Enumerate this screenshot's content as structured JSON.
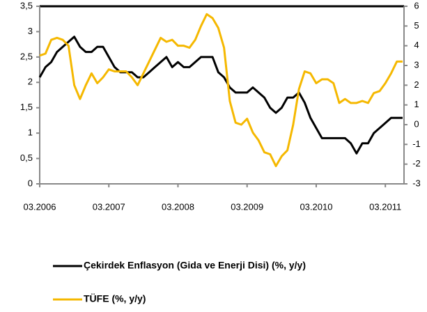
{
  "chart_data": {
    "type": "line",
    "categories": [
      "03.2006",
      null,
      null,
      null,
      null,
      null,
      null,
      null,
      null,
      null,
      null,
      null,
      "03.2007",
      null,
      null,
      null,
      null,
      null,
      null,
      null,
      null,
      null,
      null,
      null,
      "03.2008",
      null,
      null,
      null,
      null,
      null,
      null,
      null,
      null,
      null,
      null,
      null,
      "03.2009",
      null,
      null,
      null,
      null,
      null,
      null,
      null,
      null,
      null,
      null,
      null,
      "03.2010",
      null,
      null,
      null,
      null,
      null,
      null,
      null,
      null,
      null,
      null,
      null,
      "03.2011",
      null,
      null,
      null
    ],
    "series": [
      {
        "name": "Çekirdek Enflasyon (Gida ve Enerji Disi) (%, y/y)",
        "color": "#000000",
        "axis": "y",
        "values": [
          2.1,
          2.3,
          2.4,
          2.6,
          2.7,
          2.8,
          2.9,
          2.7,
          2.6,
          2.6,
          2.7,
          2.7,
          2.5,
          2.3,
          2.2,
          2.2,
          2.2,
          2.1,
          2.1,
          2.2,
          2.3,
          2.4,
          2.5,
          2.3,
          2.4,
          2.3,
          2.3,
          2.4,
          2.5,
          2.5,
          2.5,
          2.2,
          2.1,
          1.9,
          1.8,
          1.8,
          1.8,
          1.9,
          1.8,
          1.7,
          1.5,
          1.4,
          1.5,
          1.7,
          1.7,
          1.8,
          1.6,
          1.3,
          1.1,
          0.9,
          0.9,
          0.9,
          0.9,
          0.9,
          0.8,
          0.6,
          0.8,
          0.8,
          1.0,
          1.1,
          1.2,
          1.3,
          1.3,
          1.3
        ]
      },
      {
        "name": "TÜFE (%, y/y)",
        "color": "#f5b800",
        "axis": "y2",
        "values": [
          3.5,
          3.6,
          4.3,
          4.4,
          4.3,
          4.0,
          2.0,
          1.3,
          2.0,
          2.6,
          2.1,
          2.4,
          2.8,
          2.7,
          2.7,
          2.7,
          2.4,
          2.0,
          2.6,
          3.2,
          3.8,
          4.4,
          4.2,
          4.3,
          4.0,
          4.0,
          3.9,
          4.3,
          5.0,
          5.6,
          5.4,
          4.9,
          3.9,
          1.2,
          0.1,
          0.0,
          0.3,
          -0.4,
          -0.8,
          -1.4,
          -1.5,
          -2.1,
          -1.6,
          -1.3,
          0.0,
          1.8,
          2.7,
          2.6,
          2.1,
          2.3,
          2.3,
          2.1,
          1.1,
          1.3,
          1.1,
          1.1,
          1.2,
          1.1,
          1.6,
          1.7,
          2.1,
          2.6,
          3.2,
          3.2
        ]
      }
    ],
    "ylim": [
      0,
      3.5
    ],
    "yticks": [
      0,
      {
        "value": 0.5,
        "label": "0,5"
      },
      1,
      {
        "value": 1.5,
        "label": "1,5"
      },
      2,
      {
        "value": 2.5,
        "label": "2,5"
      },
      3,
      {
        "value": 3.5,
        "label": "3,5"
      }
    ],
    "y2lim": [
      -3,
      6
    ],
    "y2ticks": [
      -3,
      -2,
      -1,
      0,
      1,
      2,
      3,
      4,
      5,
      6
    ],
    "grid": false
  }
}
